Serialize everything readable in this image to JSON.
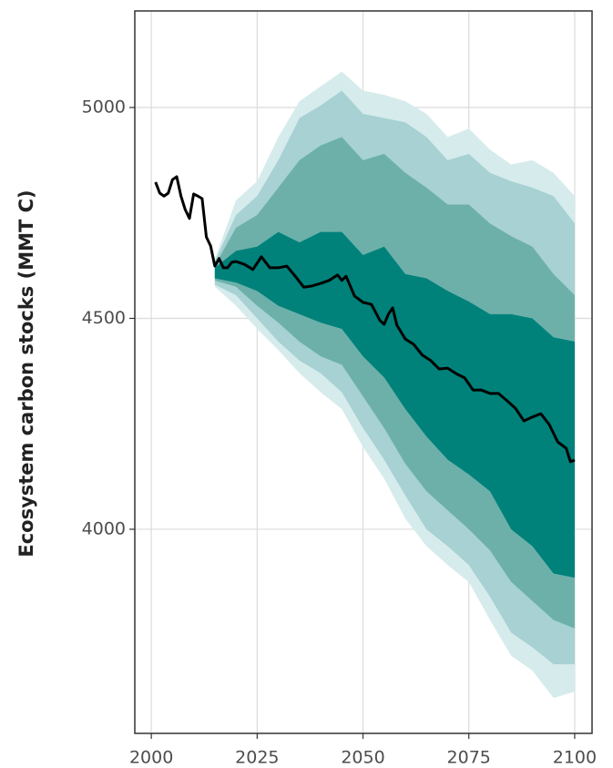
{
  "chart_data": {
    "type": "line",
    "y_label": "Ecosystem carbon stocks (MMT C)",
    "x": [
      2001,
      2002,
      2003,
      2004,
      2005,
      2006,
      2007,
      2008,
      2009,
      2010,
      2011,
      2012,
      2013,
      2014,
      2015,
      2016,
      2017,
      2018,
      2019,
      2020,
      2022,
      2024,
      2026,
      2028,
      2030,
      2032,
      2034,
      2036,
      2038,
      2040,
      2042,
      2044,
      2045,
      2046,
      2048,
      2050,
      2052,
      2054,
      2055,
      2056,
      2057,
      2058,
      2060,
      2062,
      2064,
      2066,
      2068,
      2070,
      2072,
      2074,
      2076,
      2078,
      2080,
      2082,
      2084,
      2086,
      2088,
      2090,
      2092,
      2094,
      2096,
      2098,
      2099,
      2100
    ],
    "values": [
      4823,
      4797,
      4790,
      4797,
      4829,
      4836,
      4790,
      4758,
      4737,
      4795,
      4790,
      4784,
      4693,
      4672,
      4624,
      4642,
      4620,
      4620,
      4633,
      4635,
      4628,
      4616,
      4646,
      4620,
      4620,
      4624,
      4600,
      4574,
      4577,
      4583,
      4590,
      4603,
      4590,
      4600,
      4553,
      4538,
      4533,
      4495,
      4486,
      4510,
      4525,
      4484,
      4451,
      4438,
      4413,
      4400,
      4380,
      4382,
      4369,
      4359,
      4330,
      4330,
      4322,
      4322,
      4305,
      4287,
      4257,
      4266,
      4274,
      4248,
      4207,
      4192,
      4160,
      4164
    ],
    "color": "#000000",
    "bands_x": [
      2015,
      2020,
      2025,
      2030,
      2035,
      2040,
      2045,
      2050,
      2055,
      2060,
      2065,
      2070,
      2075,
      2080,
      2085,
      2090,
      2095,
      2100
    ],
    "bands": [
      {
        "color": "#d6ebec",
        "upper": [
          4640,
          4780,
          4825,
          4930,
          5015,
          5050,
          5085,
          5040,
          5030,
          5015,
          4985,
          4930,
          4950,
          4900,
          4865,
          4875,
          4845,
          4790
        ],
        "lower": [
          4575,
          4530,
          4475,
          4425,
          4370,
          4325,
          4285,
          4195,
          4120,
          4025,
          3960,
          3915,
          3875,
          3785,
          3700,
          3665,
          3600,
          3615
        ]
      },
      {
        "color": "#a7d1d3",
        "upper": [
          4635,
          4745,
          4790,
          4875,
          4975,
          5005,
          5040,
          4985,
          4975,
          4965,
          4930,
          4875,
          4890,
          4845,
          4825,
          4810,
          4790,
          4725
        ],
        "lower": [
          4580,
          4555,
          4500,
          4445,
          4400,
          4370,
          4325,
          4240,
          4165,
          4080,
          4000,
          3960,
          3915,
          3840,
          3755,
          3720,
          3680,
          3680
        ]
      },
      {
        "color": "#6db0aa",
        "upper": [
          4625,
          4715,
          4745,
          4810,
          4875,
          4910,
          4930,
          4875,
          4890,
          4845,
          4810,
          4770,
          4770,
          4725,
          4695,
          4670,
          4605,
          4555
        ],
        "lower": [
          4590,
          4575,
          4530,
          4490,
          4445,
          4410,
          4390,
          4315,
          4240,
          4155,
          4090,
          4045,
          4000,
          3950,
          3875,
          3830,
          3785,
          3765
        ]
      },
      {
        "color": "#00827b",
        "upper": [
          4620,
          4660,
          4670,
          4705,
          4680,
          4705,
          4705,
          4650,
          4670,
          4605,
          4595,
          4565,
          4540,
          4510,
          4510,
          4500,
          4455,
          4445
        ],
        "lower": [
          4595,
          4585,
          4565,
          4530,
          4510,
          4490,
          4475,
          4410,
          4360,
          4285,
          4220,
          4165,
          4130,
          4090,
          4000,
          3960,
          3895,
          3885
        ]
      }
    ],
    "xlim": [
      1996.1,
      2104.1
    ],
    "ylim": [
      3516,
      5229
    ],
    "xticks": [
      2000,
      2025,
      2050,
      2075,
      2100
    ],
    "yticks": [
      4000,
      4500,
      5000
    ],
    "grid": true
  }
}
